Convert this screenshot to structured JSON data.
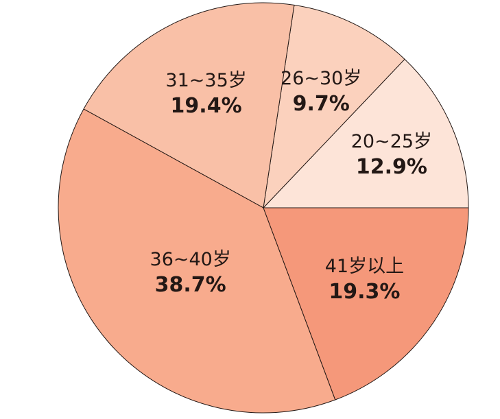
{
  "chart_data": {
    "type": "pie",
    "title": "",
    "slices": [
      {
        "label": "20~25岁",
        "value": 12.9,
        "value_label": "12.9%",
        "color": "#fde4d8"
      },
      {
        "label": "26~30岁",
        "value": 9.7,
        "value_label": "9.7%",
        "color": "#fbd1bd"
      },
      {
        "label": "31~35岁",
        "value": 19.4,
        "value_label": "19.4%",
        "color": "#f9c0a7"
      },
      {
        "label": "36~40岁",
        "value": 38.7,
        "value_label": "38.7%",
        "color": "#f8ab8d"
      },
      {
        "label": "41岁以上",
        "value": 19.3,
        "value_label": "19.3%",
        "color": "#f5987a"
      }
    ],
    "start_angle": "3 o'clock",
    "direction": "counter-clockwise",
    "legend": "none (labels on slices)"
  }
}
